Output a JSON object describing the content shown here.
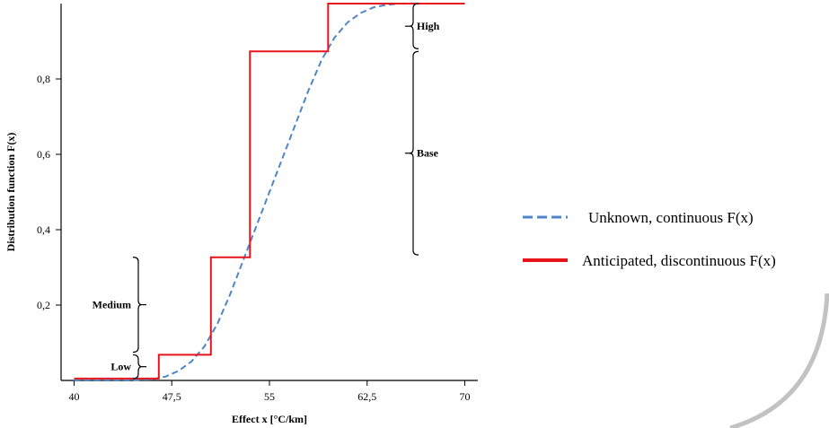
{
  "chart_data": {
    "type": "line",
    "xlabel": "Effect x [°C/km]",
    "ylabel": "Distribution function F(x)",
    "xlim": [
      39,
      71
    ],
    "ylim": [
      0,
      1
    ],
    "x_ticks": [
      40,
      47.5,
      55,
      62.5,
      70
    ],
    "x_tick_labels": [
      "40",
      "47,5",
      "55",
      "62,5",
      "70"
    ],
    "y_ticks": [
      0.2,
      0.4,
      0.6,
      0.8
    ],
    "y_tick_labels": [
      "0,2",
      "0,4",
      "0,6",
      "0,8"
    ],
    "grid": false,
    "legend_position": "right",
    "series": [
      {
        "name": "Unknown, continuous F(x)",
        "style": "dashed",
        "color": "#4f86c6",
        "x": [
          40,
          42,
          44,
          46,
          47,
          48,
          49,
          50,
          51,
          52,
          53,
          54,
          55,
          56,
          57,
          58,
          59,
          60,
          61,
          62,
          63,
          64,
          65,
          66,
          70
        ],
        "y": [
          0.0,
          0.0,
          0.0,
          0.003,
          0.01,
          0.025,
          0.05,
          0.09,
          0.15,
          0.23,
          0.32,
          0.41,
          0.5,
          0.59,
          0.68,
          0.77,
          0.85,
          0.91,
          0.95,
          0.975,
          0.99,
          0.997,
          1.0,
          1.0,
          1.0
        ]
      },
      {
        "name": "Anticipated, discontinuous F(x)",
        "style": "solid-step",
        "color": "#e8141b",
        "x": [
          40,
          46.5,
          46.5,
          50.5,
          50.5,
          53.5,
          53.5,
          59.5,
          59.5,
          70
        ],
        "y": [
          0.005,
          0.005,
          0.068,
          0.068,
          0.327,
          0.327,
          0.873,
          0.873,
          1.0,
          1.0
        ]
      }
    ],
    "annotations": [
      {
        "label": "Low",
        "y_range": [
          0.005,
          0.068
        ],
        "side": "left"
      },
      {
        "label": "Medium",
        "y_range": [
          0.075,
          0.327
        ],
        "side": "left"
      },
      {
        "label": "Base",
        "y_range": [
          0.333,
          0.873
        ],
        "side": "right"
      },
      {
        "label": "High",
        "y_range": [
          0.88,
          1.0
        ],
        "side": "right"
      }
    ]
  }
}
